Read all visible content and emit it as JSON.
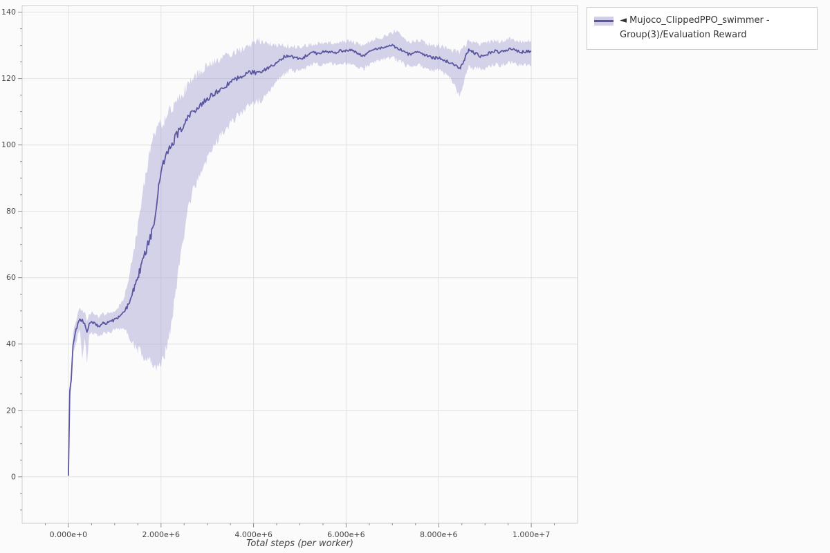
{
  "page": {
    "background": "#fbfbfb"
  },
  "legend": {
    "label": "◄ Mujoco_ClippedPPO_swimmer - Group(3)/Evaluation Reward",
    "swatch_band_color": "#a39fd0",
    "swatch_line_color": "#5a57a0"
  },
  "chart_data": {
    "type": "line",
    "title": "",
    "xlabel": "Total steps (per worker)",
    "ylabel": "",
    "legend_position": "top-right-outside",
    "grid": true,
    "grid_color": "#e2e2e2",
    "frame_color": "#cccccc",
    "tick_color": "#8a8a8a",
    "tick_label_color": "#444444",
    "xlim": [
      -1000000,
      11000000
    ],
    "ylim": [
      -14,
      142
    ],
    "x_unit": 1000000,
    "noise_texture": 1,
    "x_ticks": [
      {
        "v": 0,
        "label": "0.000e+0"
      },
      {
        "v": 2000000,
        "label": "2.000e+6"
      },
      {
        "v": 4000000,
        "label": "4.000e+6"
      },
      {
        "v": 6000000,
        "label": "6.000e+6"
      },
      {
        "v": 8000000,
        "label": "8.000e+6"
      },
      {
        "v": 10000000,
        "label": "1.000e+7"
      }
    ],
    "y_ticks": [
      {
        "v": 0,
        "label": "0"
      },
      {
        "v": 20,
        "label": "20"
      },
      {
        "v": 40,
        "label": "40"
      },
      {
        "v": 60,
        "label": "60"
      },
      {
        "v": 80,
        "label": "80"
      },
      {
        "v": 100,
        "label": "100"
      },
      {
        "v": 120,
        "label": "120"
      },
      {
        "v": 140,
        "label": "140"
      }
    ],
    "series": [
      {
        "name": "Mujoco_ClippedPPO_swimmer - Group(3)/Evaluation Reward",
        "line_color": "#5a57a0",
        "band_color": "#a39fd0",
        "band_opacity": 0.45,
        "point_format": [
          "x_millions_of_steps",
          "mean_reward",
          "band_lower",
          "band_upper"
        ],
        "points": [
          [
            0,
            0.3,
            0.3,
            0.3
          ],
          [
            0.03,
            26,
            24,
            28
          ],
          [
            0.06,
            29,
            26.5,
            31.5
          ],
          [
            0.1,
            40,
            36.5,
            43
          ],
          [
            0.15,
            43.5,
            40,
            46.5
          ],
          [
            0.2,
            46,
            42.5,
            49
          ],
          [
            0.25,
            47.5,
            44,
            50.8
          ],
          [
            0.3,
            47,
            36,
            50.5
          ],
          [
            0.35,
            46.3,
            42,
            49.5
          ],
          [
            0.4,
            43.5,
            34.5,
            47
          ],
          [
            0.45,
            46.2,
            43,
            49
          ],
          [
            0.5,
            46.6,
            43.5,
            49.5
          ],
          [
            0.55,
            46.2,
            43,
            49
          ],
          [
            0.6,
            45.8,
            42.8,
            48.6
          ],
          [
            0.65,
            45.5,
            42.5,
            48.3
          ],
          [
            0.7,
            45.8,
            42.8,
            48.6
          ],
          [
            0.75,
            46.2,
            43.2,
            49
          ],
          [
            0.8,
            46,
            43,
            48.8
          ],
          [
            0.85,
            46.4,
            43.4,
            49.2
          ],
          [
            0.9,
            46.7,
            43.6,
            49.5
          ],
          [
            0.95,
            47,
            44,
            49.8
          ],
          [
            1,
            47.3,
            44.2,
            50.2
          ],
          [
            1.05,
            47.8,
            44.5,
            50.8
          ],
          [
            1.1,
            48.3,
            44.8,
            51.5
          ],
          [
            1.15,
            48.9,
            45,
            52.5
          ],
          [
            1.2,
            49.6,
            44.5,
            54
          ],
          [
            1.25,
            50.8,
            43.5,
            57
          ],
          [
            1.3,
            52.2,
            42.5,
            60
          ],
          [
            1.35,
            54,
            41.5,
            63.5
          ],
          [
            1.4,
            56,
            40.5,
            67
          ],
          [
            1.45,
            58,
            39.5,
            71
          ],
          [
            1.5,
            60.2,
            38.5,
            75
          ],
          [
            1.55,
            62.6,
            37.5,
            80
          ],
          [
            1.6,
            65,
            36.5,
            85
          ],
          [
            1.65,
            67.2,
            35.5,
            89.5
          ],
          [
            1.7,
            69.2,
            34.8,
            93.5
          ],
          [
            1.75,
            71,
            34.3,
            97
          ],
          [
            1.8,
            73.5,
            34,
            100
          ],
          [
            1.85,
            76.5,
            33.7,
            102.5
          ],
          [
            1.9,
            80.5,
            33.5,
            104.5
          ],
          [
            1.95,
            87.5,
            33.6,
            105.5
          ],
          [
            2,
            92.5,
            34.2,
            106.2
          ],
          [
            2.05,
            94.8,
            35.5,
            107
          ],
          [
            2.1,
            96.8,
            37.5,
            108
          ],
          [
            2.15,
            98.3,
            40.5,
            109
          ],
          [
            2.2,
            99.8,
            44.5,
            110
          ],
          [
            2.3,
            101.8,
            54,
            112
          ],
          [
            2.4,
            104.2,
            64,
            114.2
          ],
          [
            2.5,
            106.2,
            73.5,
            116.2
          ],
          [
            2.6,
            108.2,
            81,
            118.2
          ],
          [
            2.7,
            110,
            86.5,
            120
          ],
          [
            2.8,
            111.4,
            90,
            121.4
          ],
          [
            2.9,
            112.6,
            93,
            122.6
          ],
          [
            3,
            113.7,
            95.5,
            123.7
          ],
          [
            3.1,
            115,
            98.5,
            124.8
          ],
          [
            3.2,
            116,
            101,
            125.7
          ],
          [
            3.3,
            116.8,
            103,
            126.3
          ],
          [
            3.4,
            117.8,
            104.8,
            126.9
          ],
          [
            3.5,
            118.8,
            106.4,
            127.5
          ],
          [
            3.6,
            119.8,
            108,
            128.1
          ],
          [
            3.7,
            120.6,
            109.5,
            128.7
          ],
          [
            3.8,
            121.2,
            110.8,
            129.2
          ],
          [
            3.9,
            121.7,
            112,
            129.8
          ],
          [
            4,
            122.1,
            112.6,
            130.6
          ],
          [
            4.1,
            121.5,
            113,
            131.6
          ],
          [
            4.2,
            122.1,
            113.6,
            130.8
          ],
          [
            4.3,
            122.9,
            115.5,
            130.3
          ],
          [
            4.4,
            123.9,
            117.5,
            130.2
          ],
          [
            4.5,
            125,
            119.3,
            130.1
          ],
          [
            4.6,
            126,
            120.7,
            130
          ],
          [
            4.7,
            126.8,
            121.8,
            130
          ],
          [
            4.8,
            126.9,
            122.4,
            129.8
          ],
          [
            4.9,
            126.3,
            122.3,
            129.5
          ],
          [
            5,
            125.9,
            122.3,
            129.4
          ],
          [
            5.1,
            126.6,
            123,
            129.8
          ],
          [
            5.2,
            127.4,
            123.8,
            130.3
          ],
          [
            5.3,
            127.8,
            124.3,
            130.6
          ],
          [
            5.4,
            127.5,
            124.2,
            130.5
          ],
          [
            5.5,
            127.9,
            124.5,
            130.7
          ],
          [
            5.6,
            128.2,
            124.7,
            130.9
          ],
          [
            5.7,
            127.8,
            124.4,
            130.7
          ],
          [
            5.8,
            128,
            124.5,
            130.9
          ],
          [
            5.9,
            128.4,
            124.7,
            131.1
          ],
          [
            6,
            128.3,
            124.5,
            131.2
          ],
          [
            6.1,
            128.7,
            124.6,
            131.3
          ],
          [
            6.2,
            128.1,
            124,
            130.8
          ],
          [
            6.3,
            127.4,
            123.2,
            130.3
          ],
          [
            6.35,
            127,
            122.9,
            130.1
          ],
          [
            6.4,
            127.2,
            123.2,
            130.3
          ],
          [
            6.5,
            128,
            124.2,
            130.9
          ],
          [
            6.6,
            128.6,
            125,
            131.5
          ],
          [
            6.7,
            129,
            125.6,
            132.1
          ],
          [
            6.8,
            129.3,
            126,
            132.7
          ],
          [
            6.9,
            129.5,
            126.2,
            133.3
          ],
          [
            7,
            129.8,
            126.2,
            133.9
          ],
          [
            7.1,
            129.3,
            125.6,
            134.5
          ],
          [
            7.2,
            128.5,
            124.8,
            133
          ],
          [
            7.3,
            127.6,
            123.9,
            131.7
          ],
          [
            7.4,
            127.1,
            123.6,
            131.1
          ],
          [
            7.5,
            127.7,
            124,
            131.5
          ],
          [
            7.6,
            127.9,
            124,
            131.5
          ],
          [
            7.7,
            127.2,
            123.4,
            130.9
          ],
          [
            7.8,
            126.6,
            122.8,
            130.4
          ],
          [
            7.9,
            126.1,
            122.5,
            130
          ],
          [
            8,
            126.3,
            122.5,
            130
          ],
          [
            8.1,
            125.6,
            121.8,
            129.4
          ],
          [
            8.2,
            125,
            121,
            128.9
          ],
          [
            8.3,
            124.5,
            119.3,
            128.5
          ],
          [
            8.4,
            123.4,
            116,
            128.1
          ],
          [
            8.45,
            122.8,
            114.5,
            128
          ],
          [
            8.5,
            123.8,
            116.5,
            128.5
          ],
          [
            8.6,
            127.2,
            122,
            130.5
          ],
          [
            8.65,
            128.8,
            123.5,
            131.8
          ],
          [
            8.7,
            128.2,
            123.3,
            131.3
          ],
          [
            8.8,
            127.5,
            123.3,
            130.7
          ],
          [
            8.9,
            126.8,
            123,
            130.2
          ],
          [
            9,
            127.1,
            123.1,
            130.4
          ],
          [
            9.1,
            127.8,
            123.7,
            131
          ],
          [
            9.2,
            128.3,
            124.2,
            131.4
          ],
          [
            9.3,
            127.9,
            124,
            131.2
          ],
          [
            9.4,
            128.2,
            124.3,
            131.5
          ],
          [
            9.5,
            128.8,
            124.8,
            131.9
          ],
          [
            9.6,
            129,
            124.9,
            132
          ],
          [
            9.7,
            128.4,
            124.3,
            131.4
          ],
          [
            9.8,
            128,
            124,
            131
          ],
          [
            9.9,
            128.3,
            124.2,
            131.3
          ],
          [
            10,
            128.3,
            124.2,
            131.3
          ]
        ]
      }
    ]
  }
}
